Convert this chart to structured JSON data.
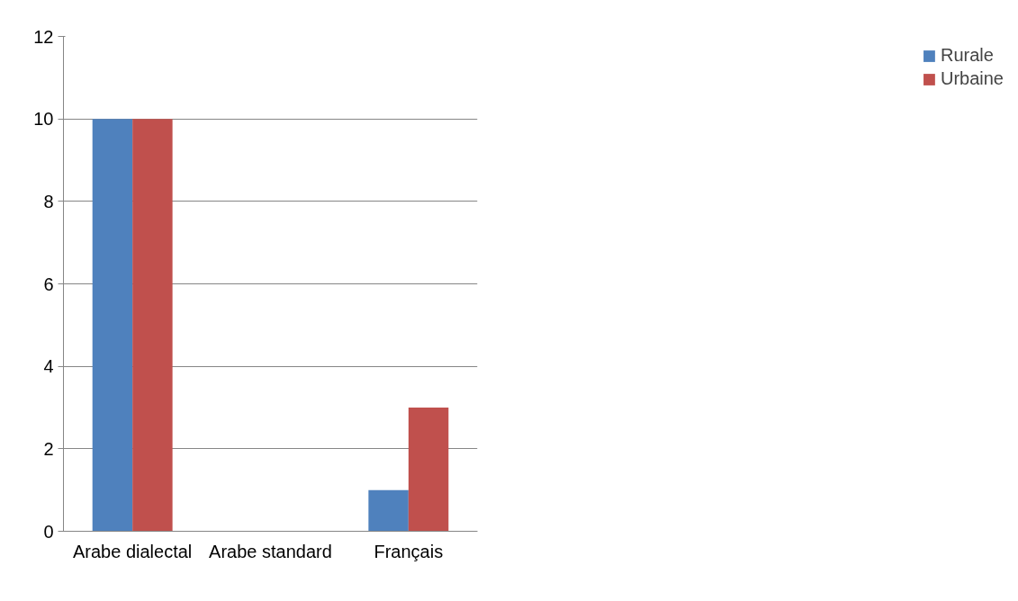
{
  "chart_data": {
    "type": "bar",
    "categories": [
      "Arabe dialectal",
      "Arabe standard",
      "Français"
    ],
    "series": [
      {
        "name": "Rurale",
        "color": "#4f81bd",
        "values": [
          10,
          0,
          1
        ]
      },
      {
        "name": "Urbaine",
        "color": "#c0504d",
        "values": [
          10,
          0,
          3
        ]
      }
    ],
    "ylim": [
      0,
      12
    ],
    "yticks": [
      0,
      2,
      4,
      6,
      8,
      10,
      12
    ],
    "grid": "y",
    "legend": "right"
  }
}
